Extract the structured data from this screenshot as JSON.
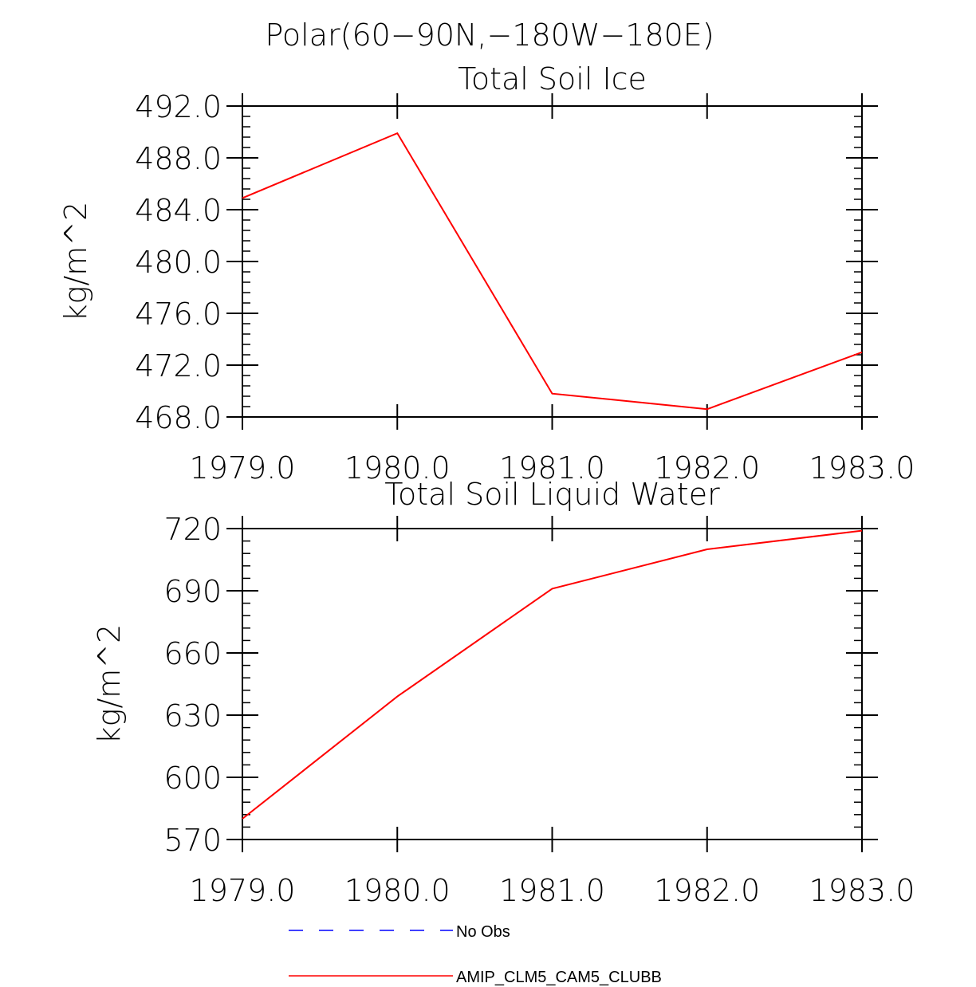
{
  "figure_title": "Polar(60−90N,−180W−180E)",
  "chart_data": [
    {
      "type": "line",
      "title": "Total Soil Ice",
      "xlabel": "",
      "ylabel": "kg/m^2",
      "xlim": [
        1979,
        1983
      ],
      "ylim": [
        468,
        492
      ],
      "x_ticks": [
        "1979.0",
        "1980.0",
        "1981.0",
        "1982.0",
        "1983.0"
      ],
      "y_ticks": [
        "468.0",
        "472.0",
        "476.0",
        "480.0",
        "484.0",
        "488.0",
        "492.0"
      ],
      "series": [
        {
          "name": "AMIP_CLM5_CAM5_CLUBB",
          "color": "#ff0000",
          "x": [
            1979,
            1980,
            1981,
            1982,
            1983
          ],
          "values": [
            484.9,
            489.9,
            469.8,
            468.6,
            473.0
          ]
        }
      ]
    },
    {
      "type": "line",
      "title": "Total Soil Liquid Water",
      "xlabel": "",
      "ylabel": "kg/m^2",
      "xlim": [
        1979,
        1983
      ],
      "ylim": [
        570,
        720
      ],
      "x_ticks": [
        "1979.0",
        "1980.0",
        "1981.0",
        "1982.0",
        "1983.0"
      ],
      "y_ticks": [
        "570",
        "600",
        "630",
        "660",
        "690",
        "720"
      ],
      "series": [
        {
          "name": "AMIP_CLM5_CAM5_CLUBB",
          "color": "#ff0000",
          "x": [
            1979,
            1980,
            1981,
            1982,
            1983
          ],
          "values": [
            580,
            639,
            691,
            710,
            719
          ]
        }
      ]
    }
  ],
  "legend": [
    {
      "label": "No Obs",
      "color": "#0000ff",
      "style": "dashed"
    },
    {
      "label": "AMIP_CLM5_CAM5_CLUBB",
      "color": "#ff0000",
      "style": "solid"
    }
  ]
}
